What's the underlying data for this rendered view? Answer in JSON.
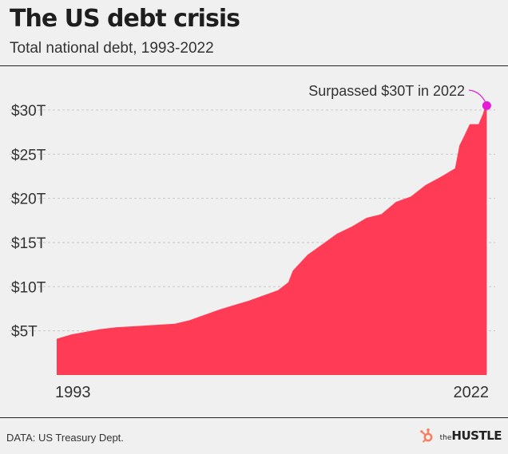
{
  "header": {
    "title": "The US debt crisis",
    "subtitle": "Total national debt, 1993-2022"
  },
  "footer": {
    "source": "DATA: US Treasury Dept.",
    "brand_prefix": "the",
    "brand_name": "HUSTLE"
  },
  "colors": {
    "area": "#ff3b55",
    "highlight": "#e619d6",
    "grid": "#c8c8c8",
    "text": "#333333"
  },
  "icons": {
    "brand_logo": "hubspot-sprocket-icon"
  },
  "chart_data": {
    "type": "area",
    "title": "The US debt crisis",
    "subtitle": "Total national debt, 1993-2022",
    "xlabel": "",
    "ylabel": "",
    "xlim": [
      1993,
      2022.4
    ],
    "ylim": [
      0,
      32
    ],
    "yticks": [
      5,
      10,
      15,
      20,
      25,
      30
    ],
    "ytick_labels": [
      "$5T",
      "$10T",
      "$15T",
      "$20T",
      "$25T",
      "$30T"
    ],
    "xtick_labels": [
      {
        "x": 1993,
        "label": "1993"
      },
      {
        "x": 2022,
        "label": "2022"
      }
    ],
    "grid": true,
    "units": "trillions USD",
    "series": [
      {
        "x": [
          1993,
          1994,
          1995,
          1996,
          1997,
          1998,
          1999,
          2000,
          2001,
          2002,
          2003,
          2004,
          2005,
          2006,
          2007,
          2008,
          2008.7,
          2009,
          2010,
          2011,
          2012,
          2013,
          2014,
          2015,
          2016,
          2017,
          2018,
          2019,
          2020,
          2020.3,
          2020.6,
          2021,
          2021.6,
          2021.9,
          2022,
          2022.15
        ],
        "values": [
          4.1,
          4.6,
          4.9,
          5.2,
          5.4,
          5.5,
          5.6,
          5.7,
          5.8,
          6.2,
          6.8,
          7.4,
          7.9,
          8.4,
          9.0,
          9.6,
          10.5,
          11.8,
          13.6,
          14.8,
          16.0,
          16.8,
          17.8,
          18.2,
          19.6,
          20.2,
          21.5,
          22.4,
          23.4,
          26.0,
          27.0,
          28.4,
          28.4,
          29.6,
          30.2,
          30.5
        ]
      }
    ],
    "annotations": [
      {
        "text": "Surpassed $30T in 2022",
        "x": 2022.15,
        "y": 30.5
      }
    ]
  }
}
